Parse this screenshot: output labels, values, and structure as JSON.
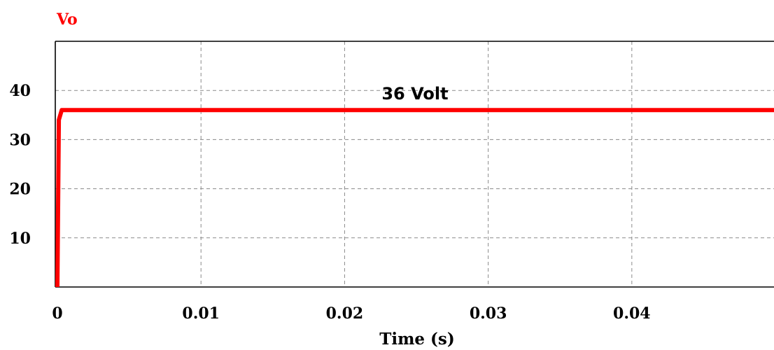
{
  "chart_data": {
    "type": "line",
    "series": [
      {
        "name": "Vo",
        "color": "#ff0000",
        "points": [
          [
            0,
            0
          ],
          [
            0.0001,
            34
          ],
          [
            0.0003,
            36
          ],
          [
            0.0499,
            36
          ]
        ]
      }
    ],
    "xlabel": "Time (s)",
    "ylabel": "",
    "xlim": [
      0,
      0.0499
    ],
    "ylim": [
      0,
      50
    ],
    "x_ticks": [
      0,
      0.01,
      0.02,
      0.03,
      0.04
    ],
    "x_tick_labels": [
      "0",
      "0.01",
      "0.02",
      "0.03",
      "0.04"
    ],
    "y_ticks": [
      10,
      20,
      30,
      40
    ],
    "y_tick_labels": [
      "10",
      "20",
      "30",
      "40"
    ],
    "grid": true,
    "annotations": [
      {
        "text": "36 Volt",
        "x": 0.0249,
        "y": 38.2
      }
    ]
  }
}
